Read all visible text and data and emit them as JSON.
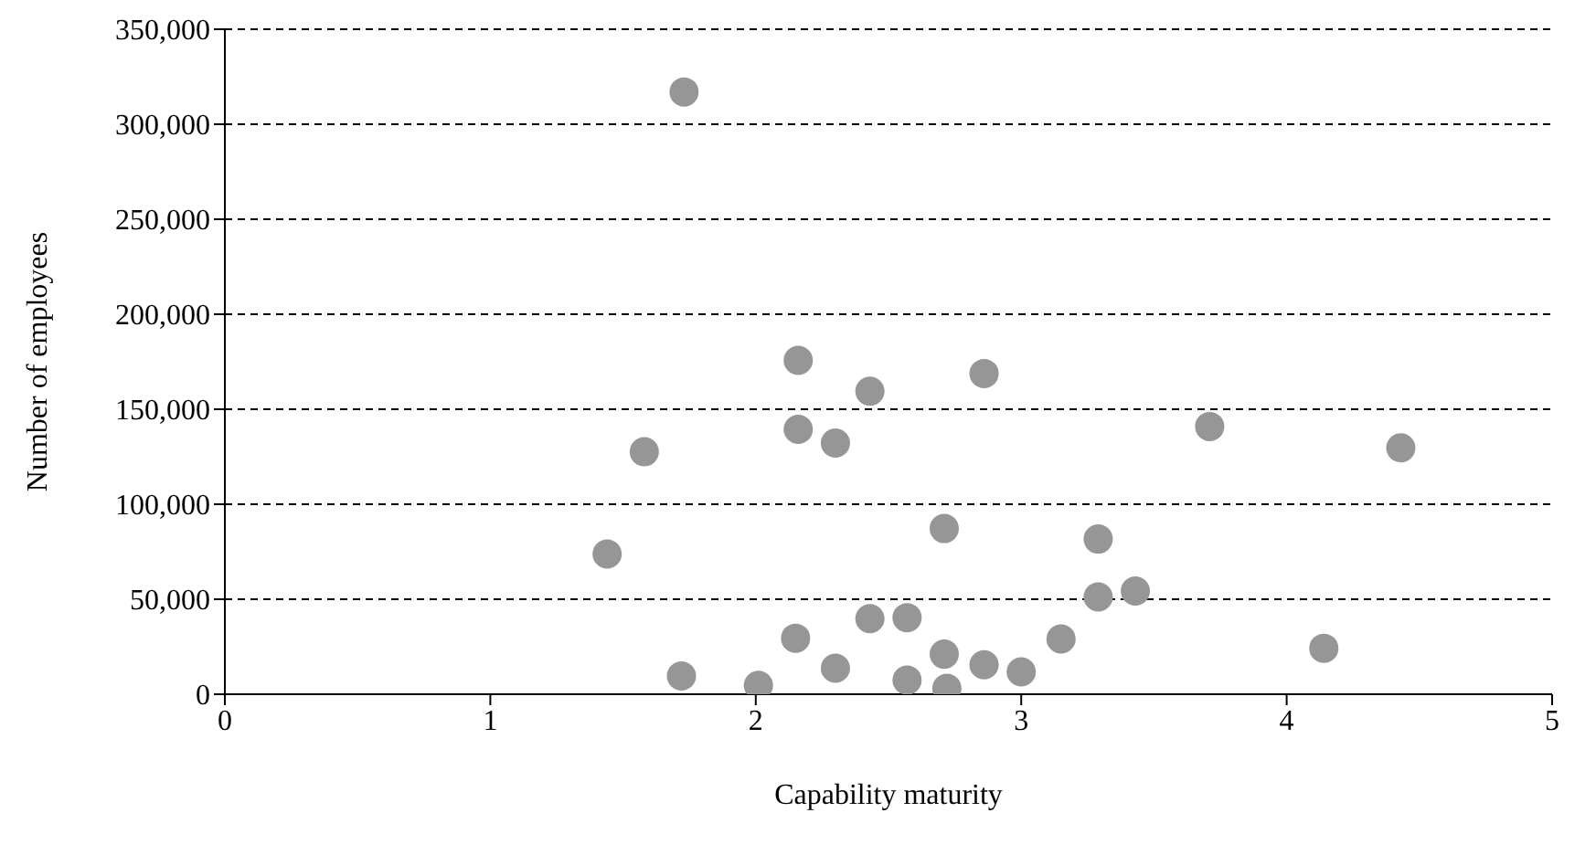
{
  "chart_data": {
    "type": "scatter",
    "xlabel": "Capability maturity",
    "ylabel": "Number of employees",
    "x": [
      1.73,
      2.16,
      2.43,
      2.86,
      3.71,
      1.58,
      2.16,
      2.3,
      2.71,
      1.44,
      3.29,
      3.29,
      3.43,
      2.43,
      2.57,
      2.15,
      3.15,
      2.71,
      1.72,
      2.01,
      2.3,
      2.57,
      2.72,
      2.86,
      3.0,
      4.43,
      4.14
    ],
    "series": [
      {
        "color": "#969696",
        "values": [
          317000,
          175700,
          159500,
          168800,
          140900,
          127600,
          139400,
          132200,
          87200,
          73800,
          81700,
          51200,
          54300,
          39800,
          40300,
          29500,
          29100,
          21100,
          9600,
          4700,
          13700,
          7400,
          3100,
          15500,
          11800,
          129700,
          24200
        ]
      }
    ],
    "xlim": [
      0,
      5
    ],
    "xticks": [
      0,
      1,
      2,
      3,
      4,
      5
    ],
    "ylim": [
      0,
      350000
    ],
    "yticks": [
      0,
      {
        "value": 50000,
        "label": "50,000"
      },
      {
        "value": 100000,
        "label": "100,000"
      },
      {
        "value": 150000,
        "label": "150,000"
      },
      {
        "value": 200000,
        "label": "200,000"
      },
      {
        "value": 250000,
        "label": "250,000"
      },
      {
        "value": 300000,
        "label": "300,000"
      },
      {
        "value": 350000,
        "label": "350,000"
      }
    ],
    "grid": "y",
    "marker": "circle",
    "legend": false
  }
}
